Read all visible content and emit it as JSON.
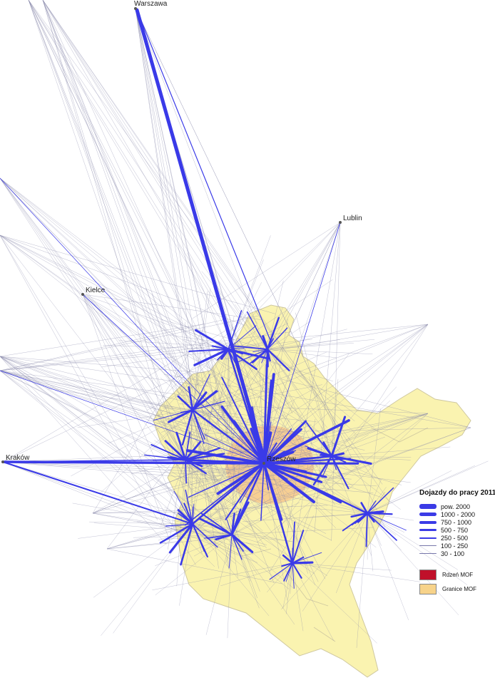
{
  "map": {
    "cities": [
      {
        "id": "warszawa",
        "name": "Warszawa"
      },
      {
        "id": "lublin",
        "name": "Lublin"
      },
      {
        "id": "kielce",
        "name": "Kielce"
      },
      {
        "id": "krakow",
        "name": "Kraków"
      },
      {
        "id": "rzeszow",
        "name": "Rzeszów"
      }
    ]
  },
  "legend": {
    "title": "Dojazdy do pracy 2011",
    "classes": [
      {
        "label": "pow. 2000"
      },
      {
        "label": "1000 - 2000"
      },
      {
        "label": "750 - 1000"
      },
      {
        "label": "500 - 750"
      },
      {
        "label": "250 - 500"
      },
      {
        "label": "100 - 250"
      },
      {
        "label": "30 - 100"
      }
    ],
    "areas": [
      {
        "label": "Rdzeń MOF",
        "color": "#c0102a"
      },
      {
        "label": "Granice MOF",
        "color": "#f7d38a"
      }
    ]
  },
  "colors": {
    "flow": "#3a3ae8",
    "thin_flow": "#8888aa",
    "region_fill": "#faf3b0",
    "region_border": "#cfc8a0",
    "mof": "#f5c38a"
  }
}
